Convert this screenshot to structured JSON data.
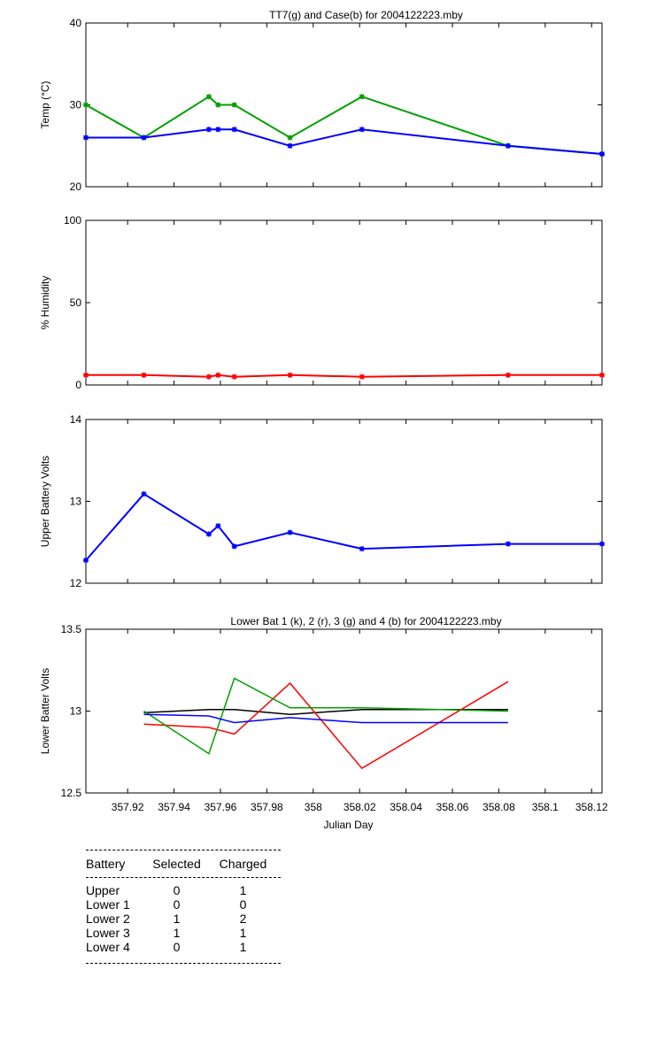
{
  "charts": [
    {
      "type": "line",
      "title": "TT7(g) and Case(b) for 2004122223.mby",
      "xlabel": "",
      "ylabel": "Temp  (°C)",
      "xlim": [
        357.902,
        358.1245
      ],
      "ylim": [
        20,
        40
      ],
      "yticks": [
        20,
        30,
        40
      ],
      "markers": true,
      "series": [
        {
          "color": "#00a000",
          "x": [
            357.902,
            357.927,
            357.955,
            357.959,
            357.966,
            357.99,
            358.021,
            358.084,
            358.1245
          ],
          "y": [
            30,
            26,
            31,
            30,
            30,
            26,
            31,
            25,
            24
          ]
        },
        {
          "color": "#0000ff",
          "x": [
            357.902,
            357.927,
            357.955,
            357.959,
            357.966,
            357.99,
            358.021,
            358.084,
            358.1245
          ],
          "y": [
            26,
            26,
            27,
            27,
            27,
            25,
            27,
            25,
            24
          ]
        }
      ]
    },
    {
      "type": "line",
      "title": "",
      "xlabel": "",
      "ylabel": "% Humidity",
      "xlim": [
        357.902,
        358.1245
      ],
      "ylim": [
        0,
        100
      ],
      "yticks": [
        0,
        50,
        100
      ],
      "markers": true,
      "series": [
        {
          "color": "#ff0000",
          "x": [
            357.902,
            357.927,
            357.955,
            357.959,
            357.966,
            357.99,
            358.021,
            358.084,
            358.1245
          ],
          "y": [
            6,
            6,
            5,
            6,
            5,
            6,
            5,
            6,
            6
          ]
        }
      ]
    },
    {
      "type": "line",
      "title": "",
      "xlabel": "",
      "ylabel": "Upper Battery Volts",
      "xlim": [
        357.902,
        358.1245
      ],
      "ylim": [
        12,
        14
      ],
      "yticks": [
        12,
        13,
        14
      ],
      "markers": true,
      "series": [
        {
          "color": "#0000ff",
          "x": [
            357.902,
            357.927,
            357.955,
            357.959,
            357.966,
            357.99,
            358.021,
            358.084,
            358.1245
          ],
          "y": [
            12.28,
            13.09,
            12.6,
            12.7,
            12.45,
            12.62,
            12.42,
            12.48,
            12.48
          ]
        }
      ]
    },
    {
      "type": "line",
      "title": "Lower Bat 1 (k), 2 (r), 3 (g) and 4 (b) for 2004122223.mby",
      "xlabel": "Julian Day",
      "ylabel": "Lower Batter Volts",
      "xlim": [
        357.902,
        358.1245
      ],
      "ylim": [
        12.5,
        13.5
      ],
      "yticks": [
        12.5,
        13,
        13.5
      ],
      "xticks": [
        357.92,
        357.94,
        357.96,
        357.98,
        358,
        358.02,
        358.04,
        358.06,
        358.08,
        358.1,
        358.12
      ],
      "xticklabels": [
        "357.92",
        "357.94",
        "357.96",
        "357.98",
        "358",
        "358.02",
        "358.04",
        "358.06",
        "358.08",
        "358.1",
        "358.12"
      ],
      "markers": false,
      "series": [
        {
          "color": "#000000",
          "x": [
            357.927,
            357.955,
            357.966,
            357.99,
            358.021,
            358.084
          ],
          "y": [
            12.99,
            13.01,
            13.01,
            12.98,
            13.01,
            13.01
          ]
        },
        {
          "color": "#ff0000",
          "x": [
            357.927,
            357.955,
            357.966,
            357.99,
            358.021,
            358.084
          ],
          "y": [
            12.92,
            12.9,
            12.86,
            13.17,
            12.65,
            13.18
          ]
        },
        {
          "color": "#00a000",
          "x": [
            357.927,
            357.955,
            357.966,
            357.99,
            358.021,
            358.084
          ],
          "y": [
            13.0,
            12.74,
            13.2,
            13.02,
            13.02,
            13.0
          ]
        },
        {
          "color": "#0000ff",
          "x": [
            357.927,
            357.955,
            357.966,
            357.99,
            358.021,
            358.084
          ],
          "y": [
            12.98,
            12.97,
            12.93,
            12.96,
            12.93,
            12.93
          ]
        }
      ]
    }
  ],
  "battery_table": {
    "headers": [
      "Battery",
      "Selected",
      "Charged"
    ],
    "rows": [
      [
        "Upper",
        "0",
        "1"
      ],
      [
        "Lower 1",
        "0",
        "0"
      ],
      [
        "Lower 2",
        "1",
        "2"
      ],
      [
        "Lower 3",
        "1",
        "1"
      ],
      [
        "Lower 4",
        "0",
        "1"
      ]
    ]
  }
}
